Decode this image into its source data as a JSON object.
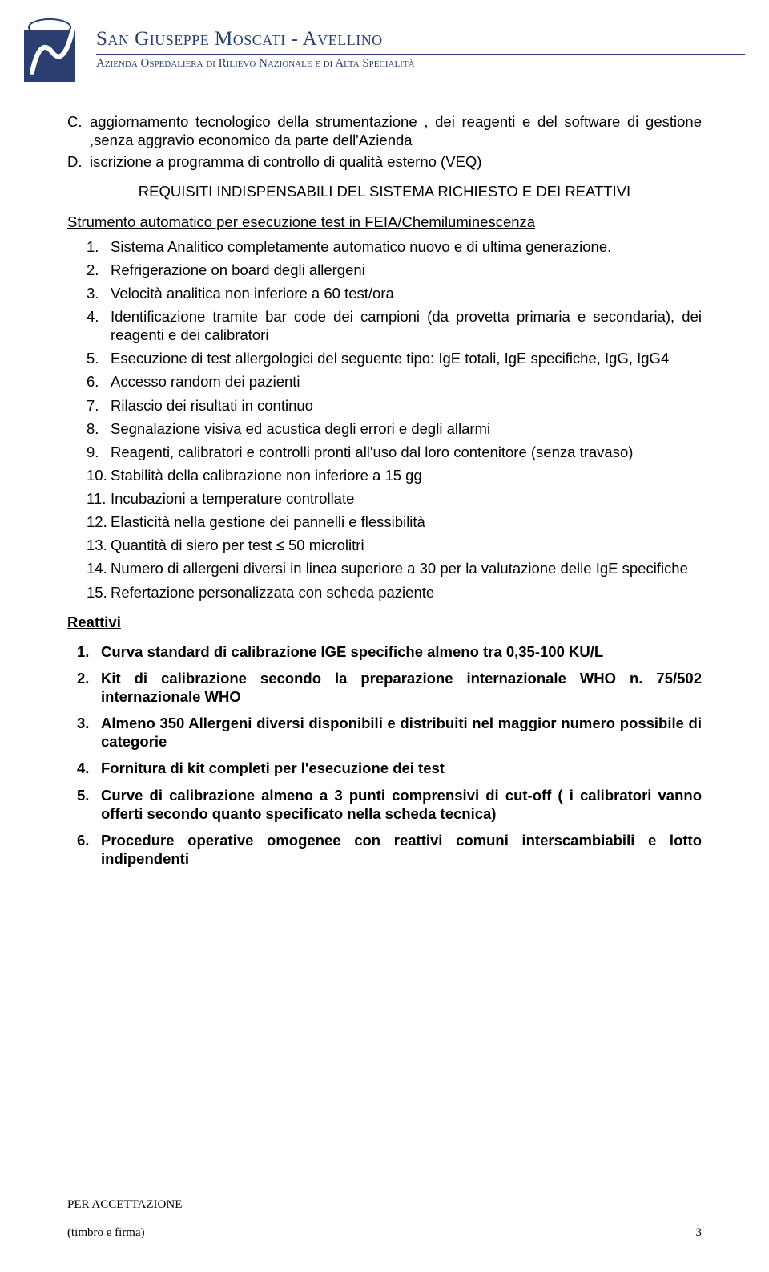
{
  "header": {
    "title": "San Giuseppe Moscati - Avellino",
    "subtitle": "Azienda Ospedaliera di Rilievo Nazionale e di Alta Specialità",
    "logo_color": "#2a3f6f"
  },
  "lettered": [
    {
      "marker": "C.",
      "text": "aggiornamento tecnologico della strumentazione , dei reagenti e del software di gestione ,senza aggravio economico da parte dell'Azienda"
    },
    {
      "marker": "D.",
      "text": "iscrizione a programma di controllo di qualità esterno (VEQ)"
    }
  ],
  "requisiti_title": "REQUISITI INDISPENSABILI DEL SISTEMA RICHIESTO E DEI REATTIVI",
  "strumento_prefix": " Strumento automatico per esecuzione test in FEIA/Chemiluminescenza",
  "numbered": [
    "Sistema Analitico completamente automatico nuovo e di ultima generazione.",
    "Refrigerazione on board degli allergeni",
    "Velocità analitica non inferiore a 60 test/ora",
    "Identificazione tramite bar code dei campioni (da provetta primaria e secondaria), dei reagenti e dei calibratori",
    "Esecuzione di test allergologici del seguente tipo: IgE totali, IgE specifiche, IgG, IgG4",
    "Accesso random dei pazienti",
    "Rilascio dei risultati in continuo",
    "Segnalazione visiva ed acustica degli errori e degli allarmi",
    "Reagenti, calibratori e controlli pronti all'uso dal loro contenitore (senza travaso)",
    "Stabilità della calibrazione non inferiore a 15 gg",
    "Incubazioni a temperature controllate",
    "Elasticità nella gestione dei pannelli e flessibilità",
    "Quantità di siero per test ≤ 50 microlitri",
    "Numero di allergeni diversi in linea superiore a 30 per la valutazione delle IgE specifiche",
    "Refertazione personalizzata con scheda paziente"
  ],
  "reattivi_title": "Reattivi ",
  "reattivi": [
    "Curva standard di calibrazione IGE specifiche almeno tra 0,35-100 KU/L",
    "Kit di calibrazione secondo la preparazione internazionale WHO n. 75/502 internazionale WHO",
    "Almeno 350 Allergeni diversi disponibili e distribuiti nel maggior numero possibile di categorie",
    "Fornitura di kit completi per l'esecuzione dei test",
    "Curve di calibrazione almeno a 3 punti comprensivi di cut-off ( i calibratori vanno offerti secondo quanto specificato nella scheda tecnica)",
    "Procedure operative omogenee con reattivi comuni interscambiabili e lotto indipendenti"
  ],
  "footer": {
    "accettazione": "PER ACCETTAZIONE",
    "timbro": "(timbro e firma)",
    "page": "3"
  }
}
